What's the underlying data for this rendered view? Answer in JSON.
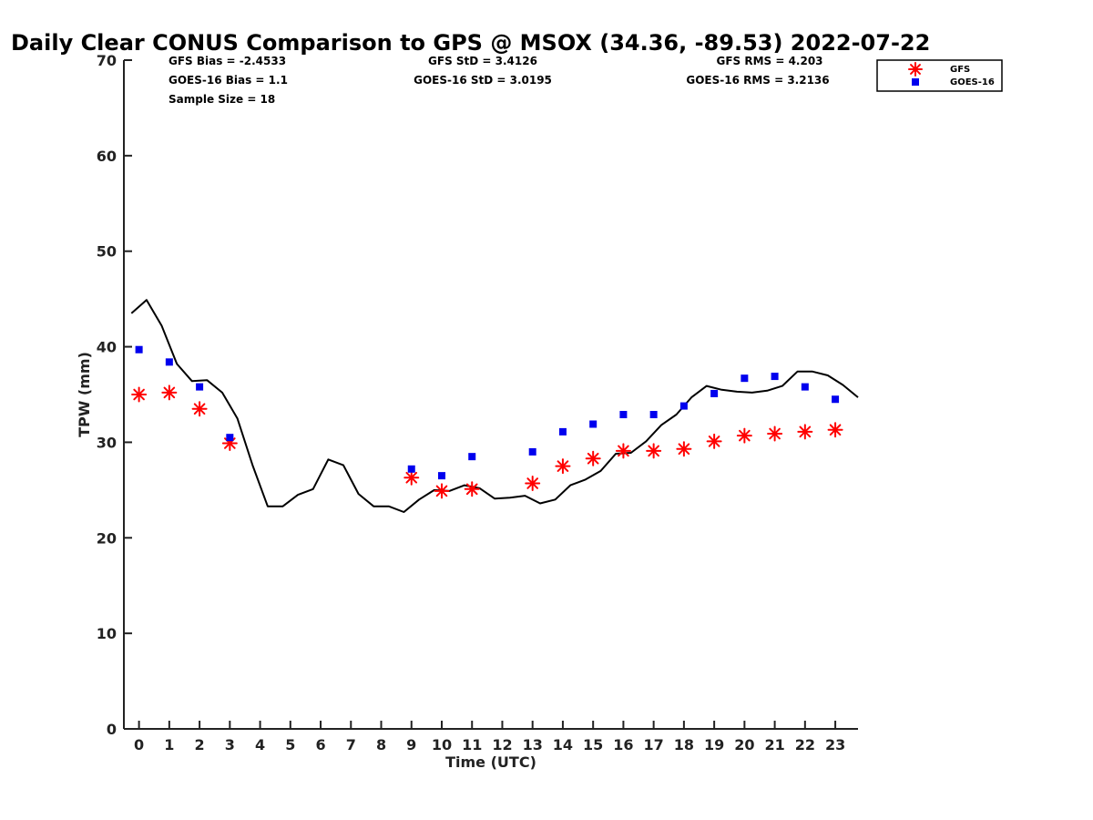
{
  "chart_data": {
    "type": "line",
    "title": "Daily Clear CONUS Comparison to GPS @ MSOX (34.36, -89.53) 2022-07-22",
    "xlabel": "Time (UTC)",
    "ylabel": "TPW (mm)",
    "xlim": [
      -0.5,
      23.75
    ],
    "ylim": [
      0,
      70
    ],
    "x_ticks": [
      0,
      1,
      2,
      3,
      4,
      5,
      6,
      7,
      8,
      9,
      10,
      11,
      12,
      13,
      14,
      15,
      16,
      17,
      18,
      19,
      20,
      21,
      22,
      23
    ],
    "x_tick_labels": [
      "0",
      "1",
      "2",
      "3",
      "4",
      "5",
      "6",
      "7",
      "8",
      "9",
      "10",
      "11",
      "12",
      "13",
      "14",
      "15",
      "16",
      "17",
      "18",
      "19",
      "20",
      "21",
      "22",
      "23"
    ],
    "y_ticks": [
      0,
      10,
      20,
      30,
      40,
      50,
      60,
      70
    ],
    "y_tick_labels": [
      "0",
      "10",
      "20",
      "30",
      "40",
      "50",
      "60",
      "70"
    ],
    "stats": {
      "gfs_bias": "GFS Bias = -2.4533",
      "goes_bias": "GOES-16 Bias = 1.1",
      "sample_size": "Sample Size = 18",
      "gfs_std": "GFS StD = 3.4126",
      "goes_std": "GOES-16 StD = 3.0195",
      "gfs_rms": "GFS RMS = 4.203",
      "goes_rms": "GOES-16 RMS = 3.2136"
    },
    "legend": {
      "position": "top-right, outside plot",
      "entries": [
        "GFS",
        "GOES-16"
      ]
    },
    "series": [
      {
        "name": "GPS",
        "style": "line",
        "color": "#000000",
        "x": [
          -0.25,
          0.25,
          0.75,
          1.25,
          1.75,
          2.25,
          2.75,
          3.25,
          3.75,
          4.25,
          4.75,
          5.25,
          5.75,
          6.25,
          6.75,
          7.25,
          7.75,
          8.25,
          8.75,
          9.25,
          9.75,
          10.25,
          10.75,
          11.25,
          11.75,
          12.25,
          12.75,
          13.25,
          13.75,
          14.25,
          14.75,
          15.25,
          15.75,
          16.25,
          16.75,
          17.25,
          17.75,
          18.25,
          18.75,
          19.25,
          19.75,
          20.25,
          20.75,
          21.25,
          21.75,
          22.25,
          22.75,
          23.25,
          23.75
        ],
        "y": [
          43.5,
          44.9,
          42.2,
          38.2,
          36.4,
          36.5,
          35.2,
          32.5,
          27.6,
          23.3,
          23.3,
          24.5,
          25.1,
          28.2,
          27.6,
          24.6,
          23.3,
          23.3,
          22.7,
          24.0,
          25.0,
          24.9,
          25.5,
          25.2,
          24.1,
          24.2,
          24.4,
          23.6,
          24.0,
          25.5,
          26.1,
          27.0,
          28.8,
          28.9,
          30.1,
          31.8,
          32.9,
          34.7,
          35.9,
          35.5,
          35.3,
          35.2,
          35.4,
          35.9,
          37.4,
          37.4,
          37.0,
          36.0,
          34.7
        ]
      },
      {
        "name": "GFS",
        "style": "asterisk",
        "color": "#ff0000",
        "x": [
          0,
          1,
          2,
          3,
          9,
          10,
          11,
          13,
          14,
          15,
          16,
          17,
          18,
          19,
          20,
          21,
          22,
          23
        ],
        "y": [
          35.0,
          35.2,
          33.5,
          29.9,
          26.3,
          24.9,
          25.1,
          25.7,
          27.5,
          28.3,
          29.1,
          29.1,
          29.3,
          30.1,
          30.7,
          30.9,
          31.1,
          31.3
        ]
      },
      {
        "name": "GOES-16",
        "style": "square",
        "color": "#0000ee",
        "x": [
          0,
          1,
          2,
          3,
          9,
          10,
          11,
          13,
          14,
          15,
          16,
          17,
          18,
          19,
          20,
          21,
          22,
          23
        ],
        "y": [
          39.7,
          38.4,
          35.8,
          30.5,
          27.2,
          26.5,
          28.5,
          29.0,
          31.1,
          31.9,
          32.9,
          32.9,
          33.8,
          35.1,
          36.7,
          36.9,
          35.8,
          34.5
        ]
      }
    ]
  }
}
